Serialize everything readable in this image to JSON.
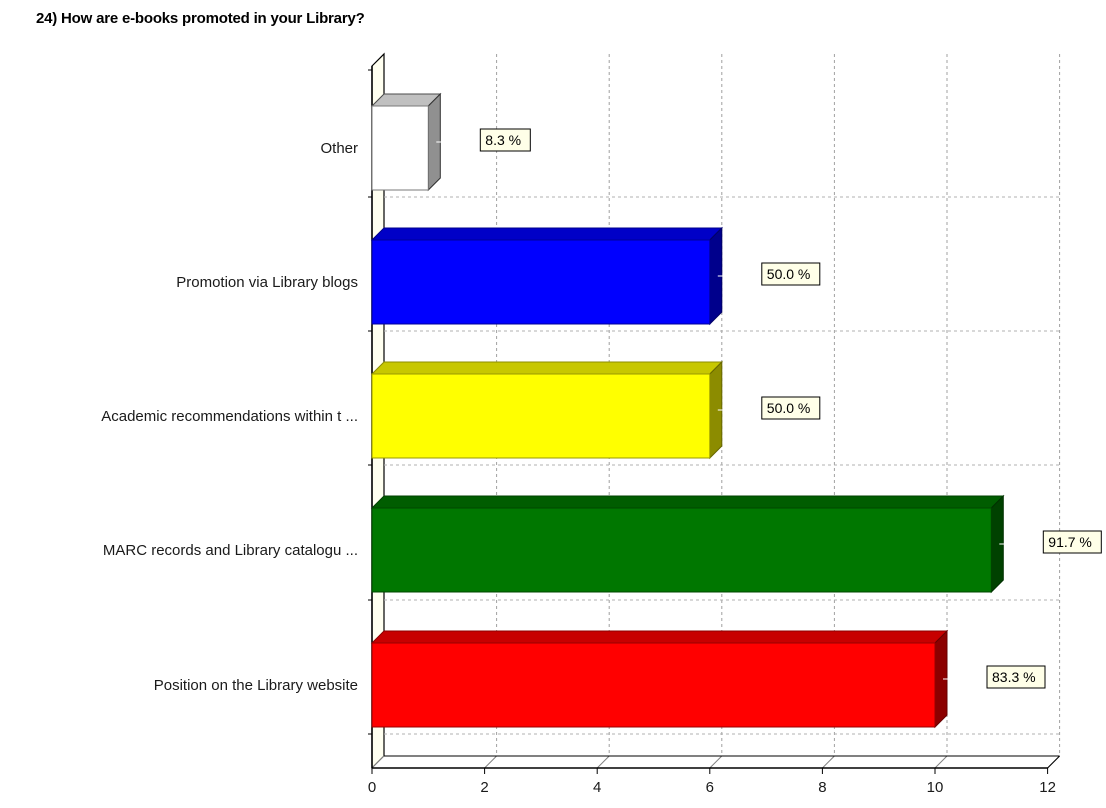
{
  "chart_data": {
    "type": "bar",
    "orientation": "horizontal",
    "title": "24) How are e-books promoted in your Library?",
    "xlabel": "",
    "ylabel": "",
    "categories": [
      "Other",
      "Promotion via Library blogs",
      "Academic recommendations within t ...",
      "MARC records and Library catalogu ...",
      "Position on the Library website"
    ],
    "values": [
      1,
      6,
      6,
      11,
      10
    ],
    "data_labels": [
      "8.3 %",
      "50.0 %",
      "50.0 %",
      "91.7 %",
      "83.3 %"
    ],
    "colors": [
      "#ffffff",
      "#0000ff",
      "#ffff00",
      "#007700",
      "#ff0000"
    ],
    "xlim": [
      0,
      12
    ],
    "xticks": [
      "0",
      "2",
      "4",
      "6",
      "8",
      "10",
      "12"
    ],
    "grid": true,
    "style": "3d"
  }
}
